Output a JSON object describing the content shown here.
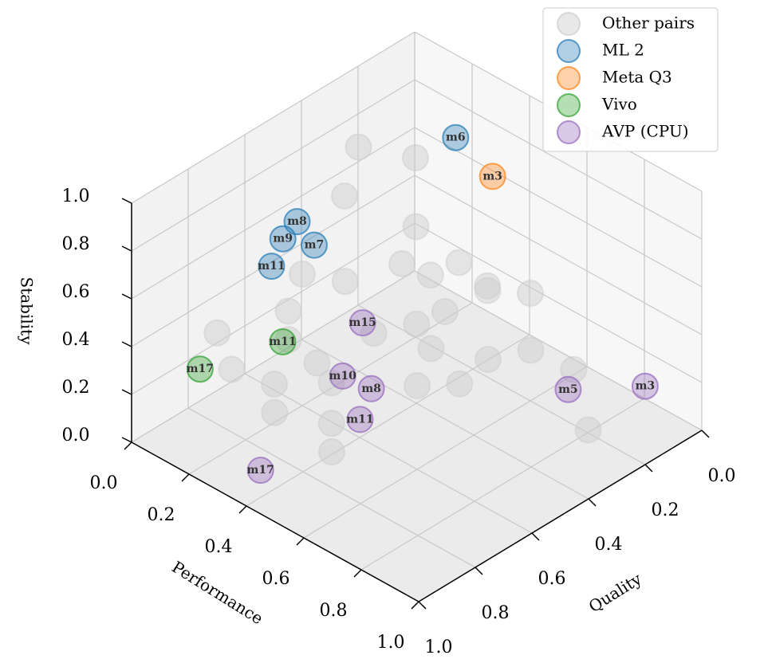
{
  "chart_data": {
    "type": "scatter3d",
    "xlabel": "Performance",
    "ylabel": "Quality",
    "zlabel": "Stability",
    "xlim": [
      0,
      1
    ],
    "ylim": [
      0,
      1
    ],
    "zlim": [
      0,
      1
    ],
    "xticks": [
      {
        "value": 0,
        "label": "0.0"
      },
      0.2,
      0.4,
      0.6,
      0.8,
      {
        "value": 1,
        "label": "1.0"
      }
    ],
    "yticks": [
      {
        "value": 0,
        "label": "0.0"
      },
      0.2,
      0.4,
      0.6,
      0.8,
      {
        "value": 1,
        "label": "1.0"
      }
    ],
    "zticks": [
      {
        "value": 0,
        "label": "0.0"
      },
      0.2,
      0.4,
      0.6,
      0.8,
      {
        "value": 1,
        "label": "1.0"
      }
    ],
    "grid": true,
    "legend": "upper right",
    "series": [
      {
        "name": "Other pairs",
        "color": "#cccccc",
        "x": [
          0.1,
          0.2,
          0.15,
          0.3,
          0.35,
          0.4,
          0.45,
          0.5,
          0.55,
          0.6,
          0.5,
          0.45,
          0.3,
          0.2,
          0.25,
          0.3,
          0.35,
          0.3,
          0.4,
          0.45,
          0.5,
          0.35,
          0.6,
          0.55,
          0.65,
          0.7,
          0.8,
          0.9,
          0.25,
          0.15,
          0.6,
          0.4
        ],
        "y": [
          0.3,
          0.2,
          0.4,
          0.3,
          0.4,
          0.35,
          0.3,
          0.25,
          0.3,
          0.2,
          0.4,
          0.45,
          0.55,
          0.6,
          0.7,
          0.75,
          0.7,
          0.8,
          0.7,
          0.75,
          0.8,
          0.85,
          0.6,
          0.5,
          0.4,
          0.3,
          0.25,
          0.3,
          0.9,
          0.85,
          0.45,
          0.55
        ],
        "z": [
          0.8,
          0.75,
          0.7,
          0.6,
          0.55,
          0.5,
          0.55,
          0.45,
          0.5,
          0.45,
          0.45,
          0.4,
          0.55,
          0.55,
          0.5,
          0.45,
          0.35,
          0.3,
          0.3,
          0.2,
          0.15,
          0.25,
          0.35,
          0.4,
          0.35,
          0.35,
          0.3,
          0.15,
          0.4,
          0.45,
          0.25,
          0.4
        ]
      },
      {
        "name": "ML 2",
        "color": "#1f77b4",
        "x": [
          0.32,
          0.32,
          0.31,
          0.35,
          0.3
        ],
        "y": [
          0.18,
          0.74,
          0.78,
          0.71,
          0.81
        ],
        "z": [
          0.9,
          0.95,
          0.9,
          0.85,
          0.8
        ],
        "labels": [
          "m6",
          "m8",
          "m9",
          "m7",
          "m11"
        ]
      },
      {
        "name": "Meta Q3",
        "color": "#ff7f0e",
        "x": [
          0.36
        ],
        "y": [
          0.09
        ],
        "z": [
          0.7
        ],
        "labels": [
          "m3"
        ]
      },
      {
        "name": "Vivo",
        "color": "#2ca02c",
        "x": [
          0.26,
          0.12
        ],
        "y": [
          0.73,
          0.88
        ],
        "z": [
          0.4,
          0.3
        ],
        "labels": [
          "m11",
          "m17"
        ]
      },
      {
        "name": "AVP (CPU)",
        "color": "#9467bd",
        "x": [
          0.42,
          0.4,
          0.49,
          0.49,
          0.39,
          0.85,
          0.98
        ],
        "y": [
          0.61,
          0.66,
          0.65,
          0.69,
          0.94,
          0.32,
          0.18
        ],
        "z": [
          0.5,
          0.3,
          0.3,
          0.2,
          0.1,
          0.3,
          0.3
        ],
        "labels": [
          "m15",
          "m10",
          "m8",
          "m11",
          "m17",
          "m5",
          "m3"
        ]
      }
    ]
  }
}
